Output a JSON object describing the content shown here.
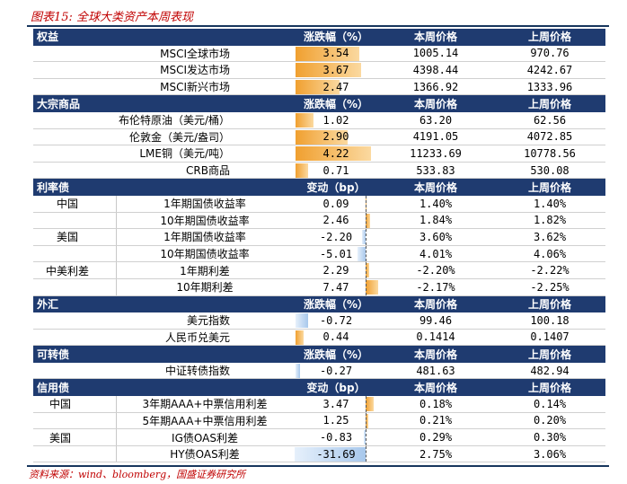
{
  "title": "图表15:  全球大类资产本周表现",
  "source": "资料来源：wind、bloomberg，国盛证券研究所",
  "colors": {
    "header": "#1f3b70",
    "pos": "#f0a030",
    "neg": "#a8c8ec"
  },
  "sections": [
    {
      "header": [
        "权益",
        "涨跌幅（%）",
        "本周价格",
        "上周价格"
      ],
      "type": "pct",
      "max": 4.5,
      "rows": [
        {
          "label": "MSCI全球市场",
          "value": 3.54,
          "display": "3.54",
          "cur": "1005.14",
          "prev": "970.76"
        },
        {
          "label": "MSCI发达市场",
          "value": 3.67,
          "display": "3.67",
          "cur": "4398.44",
          "prev": "4242.67"
        },
        {
          "label": "MSCI新兴市场",
          "value": 2.47,
          "display": "2.47",
          "cur": "1366.92",
          "prev": "1333.96"
        }
      ]
    },
    {
      "header": [
        "大宗商品",
        "涨跌幅（%）",
        "本周价格",
        "上周价格"
      ],
      "type": "pct",
      "max": 4.5,
      "rows": [
        {
          "label": "布伦特原油（美元/桶）",
          "value": 1.02,
          "display": "1.02",
          "cur": "63.20",
          "prev": "62.56"
        },
        {
          "label": "伦敦金（美元/盎司）",
          "value": 2.9,
          "display": "2.90",
          "cur": "4191.05",
          "prev": "4072.85"
        },
        {
          "label": "LME铜（美元/吨）",
          "value": 4.22,
          "display": "4.22",
          "cur": "11233.69",
          "prev": "10778.56"
        },
        {
          "label": "CRB商品",
          "value": 0.71,
          "display": "0.71",
          "cur": "533.83",
          "prev": "530.08"
        }
      ]
    },
    {
      "header": [
        "利率债",
        "变动（bp）",
        "本周价格",
        "上周价格"
      ],
      "type": "bp",
      "max": 9,
      "rows": [
        {
          "group": "中国",
          "label": "1年期国债收益率",
          "value": 0.09,
          "display": "0.09",
          "cur": "1.40%",
          "prev": "1.40%"
        },
        {
          "group": "",
          "label": "10年期国债收益率",
          "value": 2.46,
          "display": "2.46",
          "cur": "1.84%",
          "prev": "1.82%"
        },
        {
          "group": "美国",
          "label": "1年期国债收益率",
          "value": -2.2,
          "display": "-2.20",
          "cur": "3.60%",
          "prev": "3.62%"
        },
        {
          "group": "",
          "label": "10年期国债收益率",
          "value": -5.01,
          "display": "-5.01",
          "cur": "4.01%",
          "prev": "4.06%"
        },
        {
          "group": "中美利差",
          "label": "1年期利差",
          "value": 2.29,
          "display": "2.29",
          "cur": "-2.20%",
          "prev": "-2.22%"
        },
        {
          "group": "",
          "label": "10年期利差",
          "value": 7.47,
          "display": "7.47",
          "cur": "-2.17%",
          "prev": "-2.25%"
        }
      ]
    },
    {
      "header": [
        "外汇",
        "涨跌幅（%）",
        "本周价格",
        "上周价格"
      ],
      "type": "pct",
      "max": 4.5,
      "rows": [
        {
          "label": "美元指数",
          "value": -0.72,
          "display": "-0.72",
          "cur": "99.46",
          "prev": "100.18"
        },
        {
          "label": "人民币兑美元",
          "value": 0.44,
          "display": "0.44",
          "cur": "0.1414",
          "prev": "0.1407"
        }
      ]
    },
    {
      "header": [
        "可转债",
        "涨跌幅（%）",
        "本周价格",
        "上周价格"
      ],
      "type": "pct",
      "max": 4.5,
      "rows": [
        {
          "label": "中证转债指数",
          "value": -0.27,
          "display": "-0.27",
          "cur": "481.63",
          "prev": "482.94"
        }
      ]
    },
    {
      "header": [
        "信用债",
        "变动（bp）",
        "本周价格",
        "上周价格"
      ],
      "type": "bp2",
      "max": 32,
      "rows": [
        {
          "group": "中国",
          "label": "3年期AAA+中票信用利差",
          "value": 3.47,
          "display": "3.47",
          "cur": "0.18%",
          "prev": "0.14%"
        },
        {
          "group": "",
          "label": "5年期AAA+中票信用利差",
          "value": 1.25,
          "display": "1.25",
          "cur": "0.21%",
          "prev": "0.20%"
        },
        {
          "group": "美国",
          "label": "IG债OAS利差",
          "value": -0.83,
          "display": "-0.83",
          "cur": "0.29%",
          "prev": "0.30%"
        },
        {
          "group": "",
          "label": "HY债OAS利差",
          "value": -31.69,
          "display": "-31.69",
          "cur": "2.75%",
          "prev": "3.06%"
        }
      ]
    }
  ]
}
